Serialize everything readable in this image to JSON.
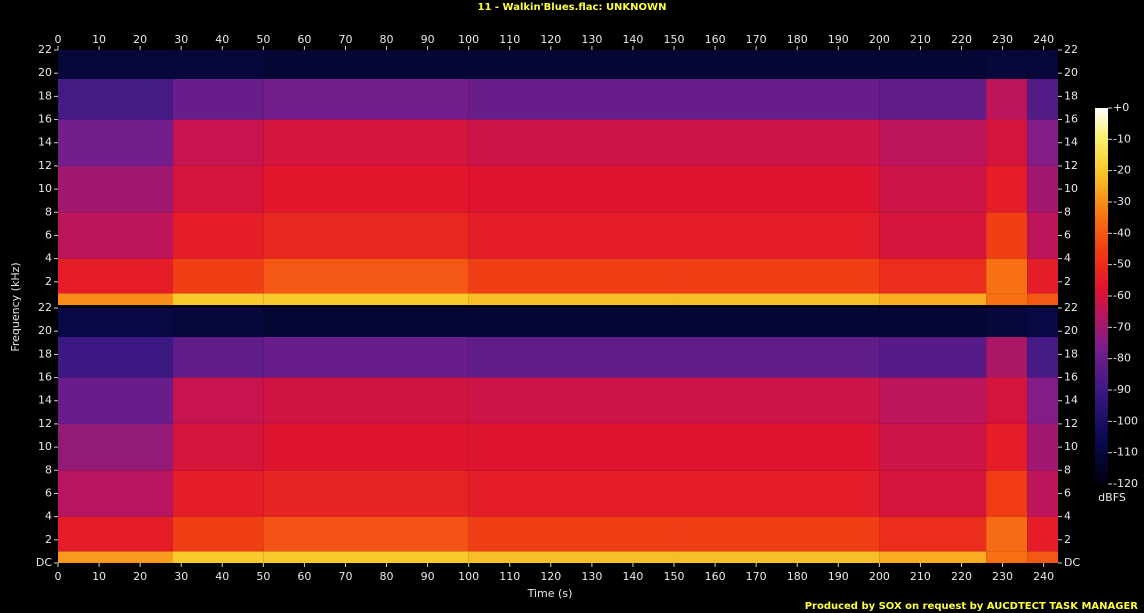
{
  "chart_data": {
    "type": "heatmap",
    "title": "11 - Walkin'Blues.flac: UNKNOWN",
    "x_label": "Time (s)",
    "y_label": "Frequency (kHz)",
    "footer": "Produced by SOX on request by AUCDTECT TASK MANAGER",
    "xlim": [
      0,
      243.5
    ],
    "xticks": [
      0,
      10,
      20,
      30,
      40,
      50,
      60,
      70,
      80,
      90,
      100,
      110,
      120,
      130,
      140,
      150,
      160,
      170,
      180,
      190,
      200,
      210,
      220,
      230,
      240
    ],
    "ylim": [
      0,
      22
    ],
    "x_bins": [
      0,
      28,
      50,
      100,
      150,
      200,
      226,
      236,
      243.5
    ],
    "y_bins": [
      0,
      1,
      4,
      8,
      12,
      16,
      19.5,
      22
    ],
    "channels": [
      {
        "yticks": [
          2,
          4,
          6,
          8,
          10,
          12,
          14,
          16,
          18,
          20,
          22
        ],
        "values": [
          [
            -30,
            -20,
            -20,
            -22,
            -22,
            -25,
            -35,
            -40
          ],
          [
            -55,
            -45,
            -40,
            -45,
            -45,
            -50,
            -35,
            -55
          ],
          [
            -65,
            -55,
            -52,
            -55,
            -55,
            -60,
            -45,
            -65
          ],
          [
            -70,
            -60,
            -57,
            -58,
            -58,
            -62,
            -55,
            -70
          ],
          [
            -78,
            -63,
            -60,
            -62,
            -62,
            -65,
            -60,
            -75
          ],
          [
            -88,
            -80,
            -78,
            -80,
            -80,
            -82,
            -65,
            -85
          ],
          [
            -110,
            -110,
            -112,
            -112,
            -112,
            -112,
            -110,
            -110
          ]
        ]
      },
      {
        "yticks": [
          {
            "value": 0,
            "label": "DC"
          },
          2,
          4,
          6,
          8,
          10,
          12,
          14,
          16,
          18,
          20,
          22
        ],
        "values": [
          [
            -28,
            -20,
            -20,
            -22,
            -22,
            -25,
            -35,
            -40
          ],
          [
            -55,
            -45,
            -41,
            -45,
            -45,
            -50,
            -36,
            -55
          ],
          [
            -66,
            -55,
            -53,
            -55,
            -55,
            -60,
            -46,
            -65
          ],
          [
            -72,
            -60,
            -58,
            -58,
            -58,
            -62,
            -55,
            -70
          ],
          [
            -80,
            -63,
            -61,
            -62,
            -62,
            -65,
            -60,
            -75
          ],
          [
            -90,
            -82,
            -80,
            -82,
            -82,
            -84,
            -68,
            -88
          ],
          [
            -108,
            -110,
            -112,
            -112,
            -112,
            -112,
            -110,
            -108
          ]
        ]
      }
    ],
    "colorbar": {
      "label": "dBFS",
      "lim": [
        -120,
        0
      ],
      "ticks": [
        {
          "value": 0,
          "label": "+0"
        },
        -10,
        -20,
        -30,
        -40,
        -50,
        -60,
        -70,
        -80,
        -90,
        -100,
        -110,
        -120
      ]
    }
  }
}
